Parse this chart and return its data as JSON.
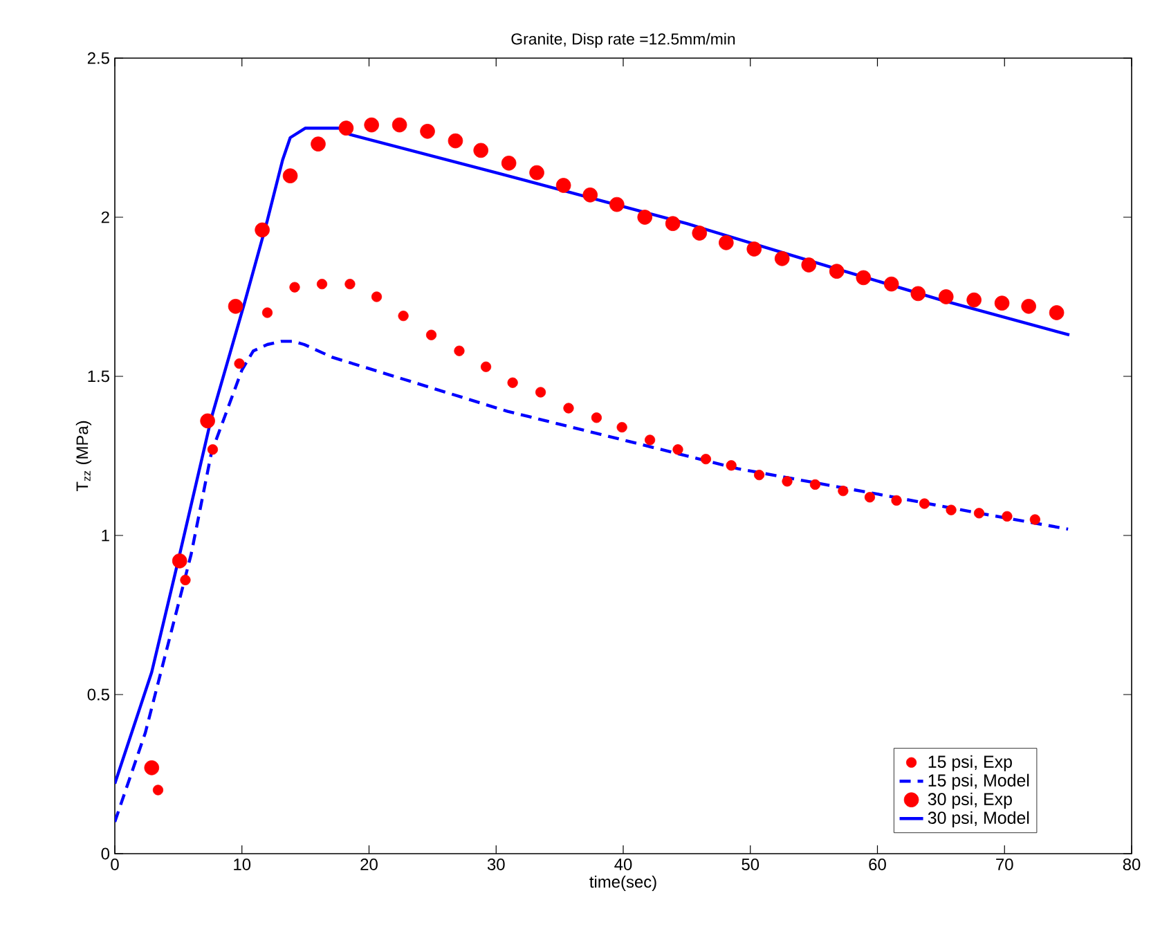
{
  "chart_data": {
    "type": "line",
    "title": "Granite, Disp rate =12.5mm/min",
    "xlabel": "time(sec)",
    "ylabel": "T$_{zz}$ (MPa)",
    "xlim": [
      0,
      80
    ],
    "ylim": [
      0,
      2.5
    ],
    "xticks": [
      0,
      10,
      20,
      30,
      40,
      50,
      60,
      70,
      80
    ],
    "yticks": [
      0,
      0.5,
      1,
      1.5,
      2,
      2.5
    ],
    "grid": false,
    "legend": "bottom right",
    "series": [
      {
        "name": "15 psi, Exp",
        "type": "scatter",
        "marker": "circle",
        "color": "#ff0000",
        "x": [
          3.4,
          5.55,
          7.7,
          9.8,
          12.0,
          14.15,
          16.3,
          18.5,
          20.6,
          22.7,
          24.9,
          27.1,
          29.2,
          31.3,
          33.5,
          35.7,
          37.9,
          39.9,
          42.1,
          44.3,
          46.5,
          48.5,
          50.7,
          52.9,
          55.1,
          57.3,
          59.4,
          61.5,
          63.7,
          65.8,
          68.0,
          70.2,
          72.4
        ],
        "values": [
          0.2,
          0.86,
          1.27,
          1.54,
          1.7,
          1.78,
          1.79,
          1.79,
          1.75,
          1.69,
          1.63,
          1.58,
          1.53,
          1.48,
          1.45,
          1.4,
          1.37,
          1.34,
          1.3,
          1.27,
          1.24,
          1.22,
          1.19,
          1.17,
          1.16,
          1.14,
          1.12,
          1.11,
          1.1,
          1.08,
          1.07,
          1.06,
          1.05
        ]
      },
      {
        "name": "15 psi, Model",
        "type": "line",
        "line_style": "dashed",
        "color": "#0000ff",
        "x": [
          0,
          2.4,
          6.0,
          7.6,
          10.0,
          10.9,
          12.0,
          13.1,
          14.0,
          14.9,
          17.1,
          23.6,
          30.9,
          40.0,
          49.0,
          60.0,
          68.0,
          75.0
        ],
        "values": [
          0.1,
          0.38,
          0.94,
          1.26,
          1.52,
          1.58,
          1.6,
          1.61,
          1.61,
          1.6,
          1.56,
          1.48,
          1.39,
          1.3,
          1.21,
          1.13,
          1.07,
          1.02
        ]
      },
      {
        "name": "30 psi, Exp",
        "type": "scatter",
        "marker": "circle",
        "color": "#ff0000",
        "x": [
          2.9,
          5.1,
          7.3,
          9.5,
          11.6,
          13.8,
          16.0,
          18.2,
          20.2,
          22.4,
          24.6,
          26.8,
          28.8,
          31.0,
          33.2,
          35.3,
          37.4,
          39.5,
          41.7,
          43.9,
          46.0,
          48.1,
          50.3,
          52.5,
          54.6,
          56.8,
          58.9,
          61.1,
          63.2,
          65.4,
          67.6,
          69.8,
          71.9,
          74.1
        ],
        "values": [
          0.27,
          0.92,
          1.36,
          1.72,
          1.96,
          2.13,
          2.23,
          2.28,
          2.29,
          2.29,
          2.27,
          2.24,
          2.21,
          2.17,
          2.14,
          2.1,
          2.07,
          2.04,
          2.0,
          1.98,
          1.95,
          1.92,
          1.9,
          1.87,
          1.85,
          1.83,
          1.81,
          1.79,
          1.76,
          1.75,
          1.74,
          1.73,
          1.72,
          1.7
        ]
      },
      {
        "name": "30 psi, Model",
        "type": "line",
        "line_style": "solid",
        "color": "#0000ff",
        "x": [
          0,
          2.9,
          5.1,
          7.6,
          10.2,
          12.0,
          13.2,
          13.8,
          15.0,
          16.5,
          17.8,
          18.5,
          30.0,
          45.0,
          56.6,
          65.0,
          75.1
        ],
        "values": [
          0.22,
          0.57,
          0.94,
          1.37,
          1.73,
          1.99,
          2.18,
          2.25,
          2.28,
          2.28,
          2.28,
          2.26,
          2.14,
          1.98,
          1.84,
          1.74,
          1.63
        ]
      }
    ]
  }
}
